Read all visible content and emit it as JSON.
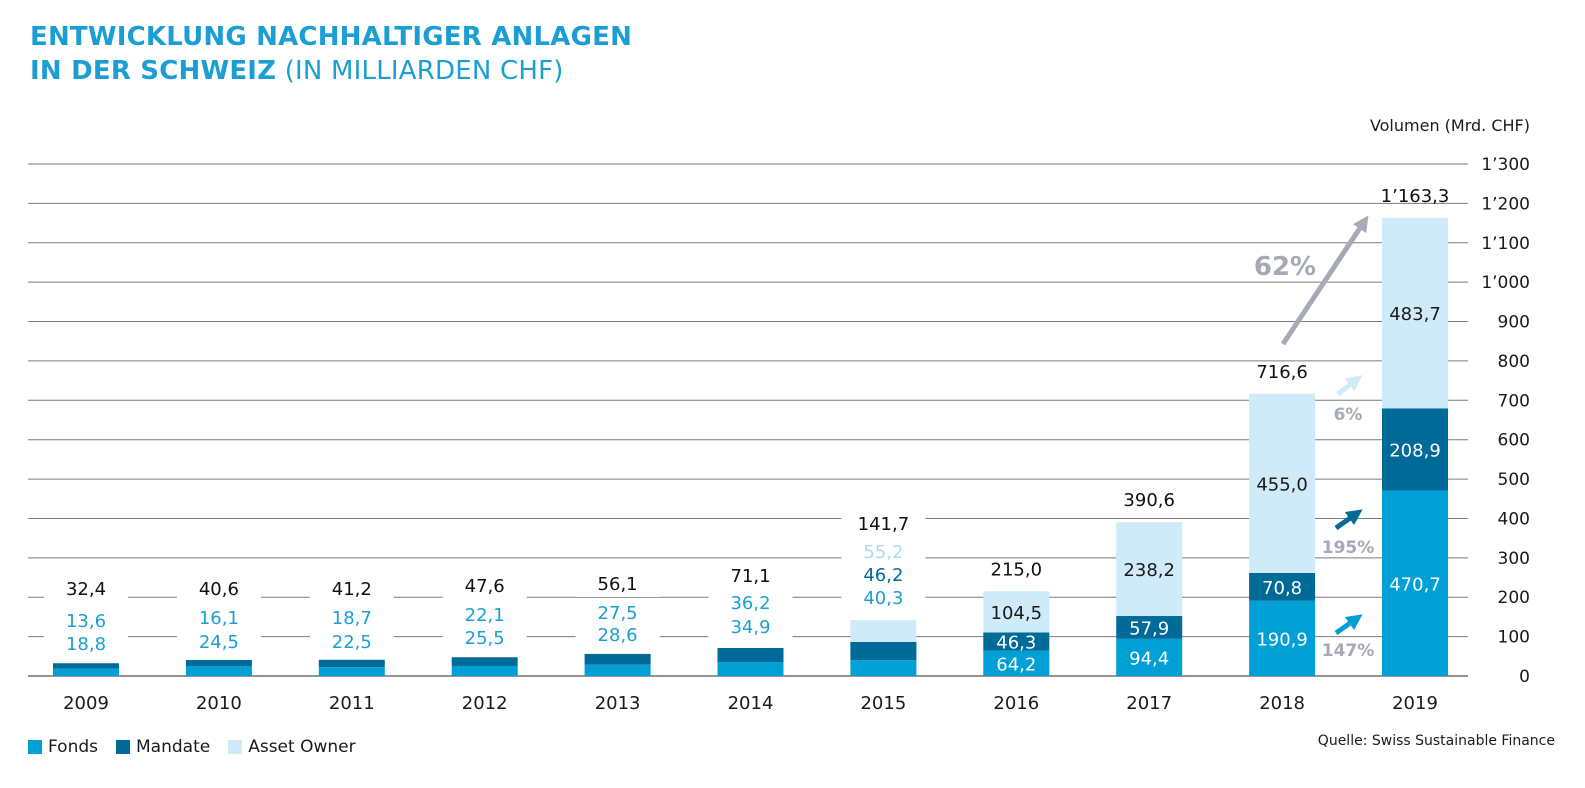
{
  "title": {
    "line1": "ENTWICKLUNG NACHHALTIGER ANLAGEN",
    "line2_bold": "IN DER SCHWEIZ",
    "line2_normal": "(IN MILLIARDEN CHF)"
  },
  "source": "Quelle: Swiss Sustainable Finance",
  "legend": [
    {
      "name": "Fonds",
      "color": "#00a0d6"
    },
    {
      "name": "Mandate",
      "color": "#006a99"
    },
    {
      "name": "Asset Owner",
      "color": "#cfeaf9"
    }
  ],
  "chart_data": {
    "type": "bar",
    "stacked": true,
    "ylabel": "Volumen (Mrd. CHF)",
    "ylim": [
      0,
      1300
    ],
    "yticks": [
      0,
      100,
      200,
      300,
      400,
      500,
      600,
      700,
      800,
      900,
      1000,
      1100,
      1200,
      1300
    ],
    "ytick_labels": [
      "0",
      "100",
      "200",
      "300",
      "400",
      "500",
      "600",
      "700",
      "800",
      "900",
      "1’000",
      "1’100",
      "1’200",
      "1’300"
    ],
    "categories": [
      "2009",
      "2010",
      "2011",
      "2012",
      "2013",
      "2014",
      "2015",
      "2016",
      "2017",
      "2018",
      "2019"
    ],
    "series": [
      {
        "name": "Fonds",
        "color": "#00a0d6",
        "values": [
          18.8,
          24.5,
          22.5,
          25.5,
          28.6,
          34.9,
          40.3,
          64.2,
          94.4,
          190.9,
          470.7
        ],
        "labels": [
          "18,8",
          "24,5",
          "22,5",
          "25,5",
          "28,6",
          "34,9",
          "40,3",
          "64,2",
          "94,4",
          "190,9",
          "470,7"
        ]
      },
      {
        "name": "Mandate",
        "color": "#006a99",
        "values": [
          13.6,
          16.1,
          18.7,
          22.1,
          27.5,
          36.2,
          46.2,
          46.3,
          57.9,
          70.8,
          208.9
        ],
        "labels": [
          "13,6",
          "16,1",
          "18,7",
          "22,1",
          "27,5",
          "36,2",
          "46,2",
          "46,3",
          "57,9",
          "70,8",
          "208,9"
        ]
      },
      {
        "name": "Asset Owner",
        "color": "#cfeaf9",
        "values": [
          0,
          0,
          0,
          0,
          0,
          0,
          55.2,
          104.5,
          238.2,
          455.0,
          483.7
        ],
        "labels": [
          "",
          "",
          "",
          "",
          "",
          "",
          "55,2",
          "104,5",
          "238,2",
          "455,0",
          "483,7"
        ]
      }
    ],
    "totals": [
      32.4,
      40.6,
      41.2,
      47.6,
      56.1,
      71.1,
      141.7,
      215.0,
      390.6,
      716.6,
      1163.3
    ],
    "total_labels": [
      "32,4",
      "40,6",
      "41,2",
      "47,6",
      "56,1",
      "71,1",
      "141,7",
      "215,0",
      "390,6",
      "716,6",
      "1’163,3"
    ],
    "growth_annotations": [
      {
        "label": "62%",
        "series": "Total"
      },
      {
        "label": "6%",
        "series": "Asset Owner"
      },
      {
        "label": "195%",
        "series": "Mandate"
      },
      {
        "label": "147%",
        "series": "Fonds"
      }
    ]
  }
}
